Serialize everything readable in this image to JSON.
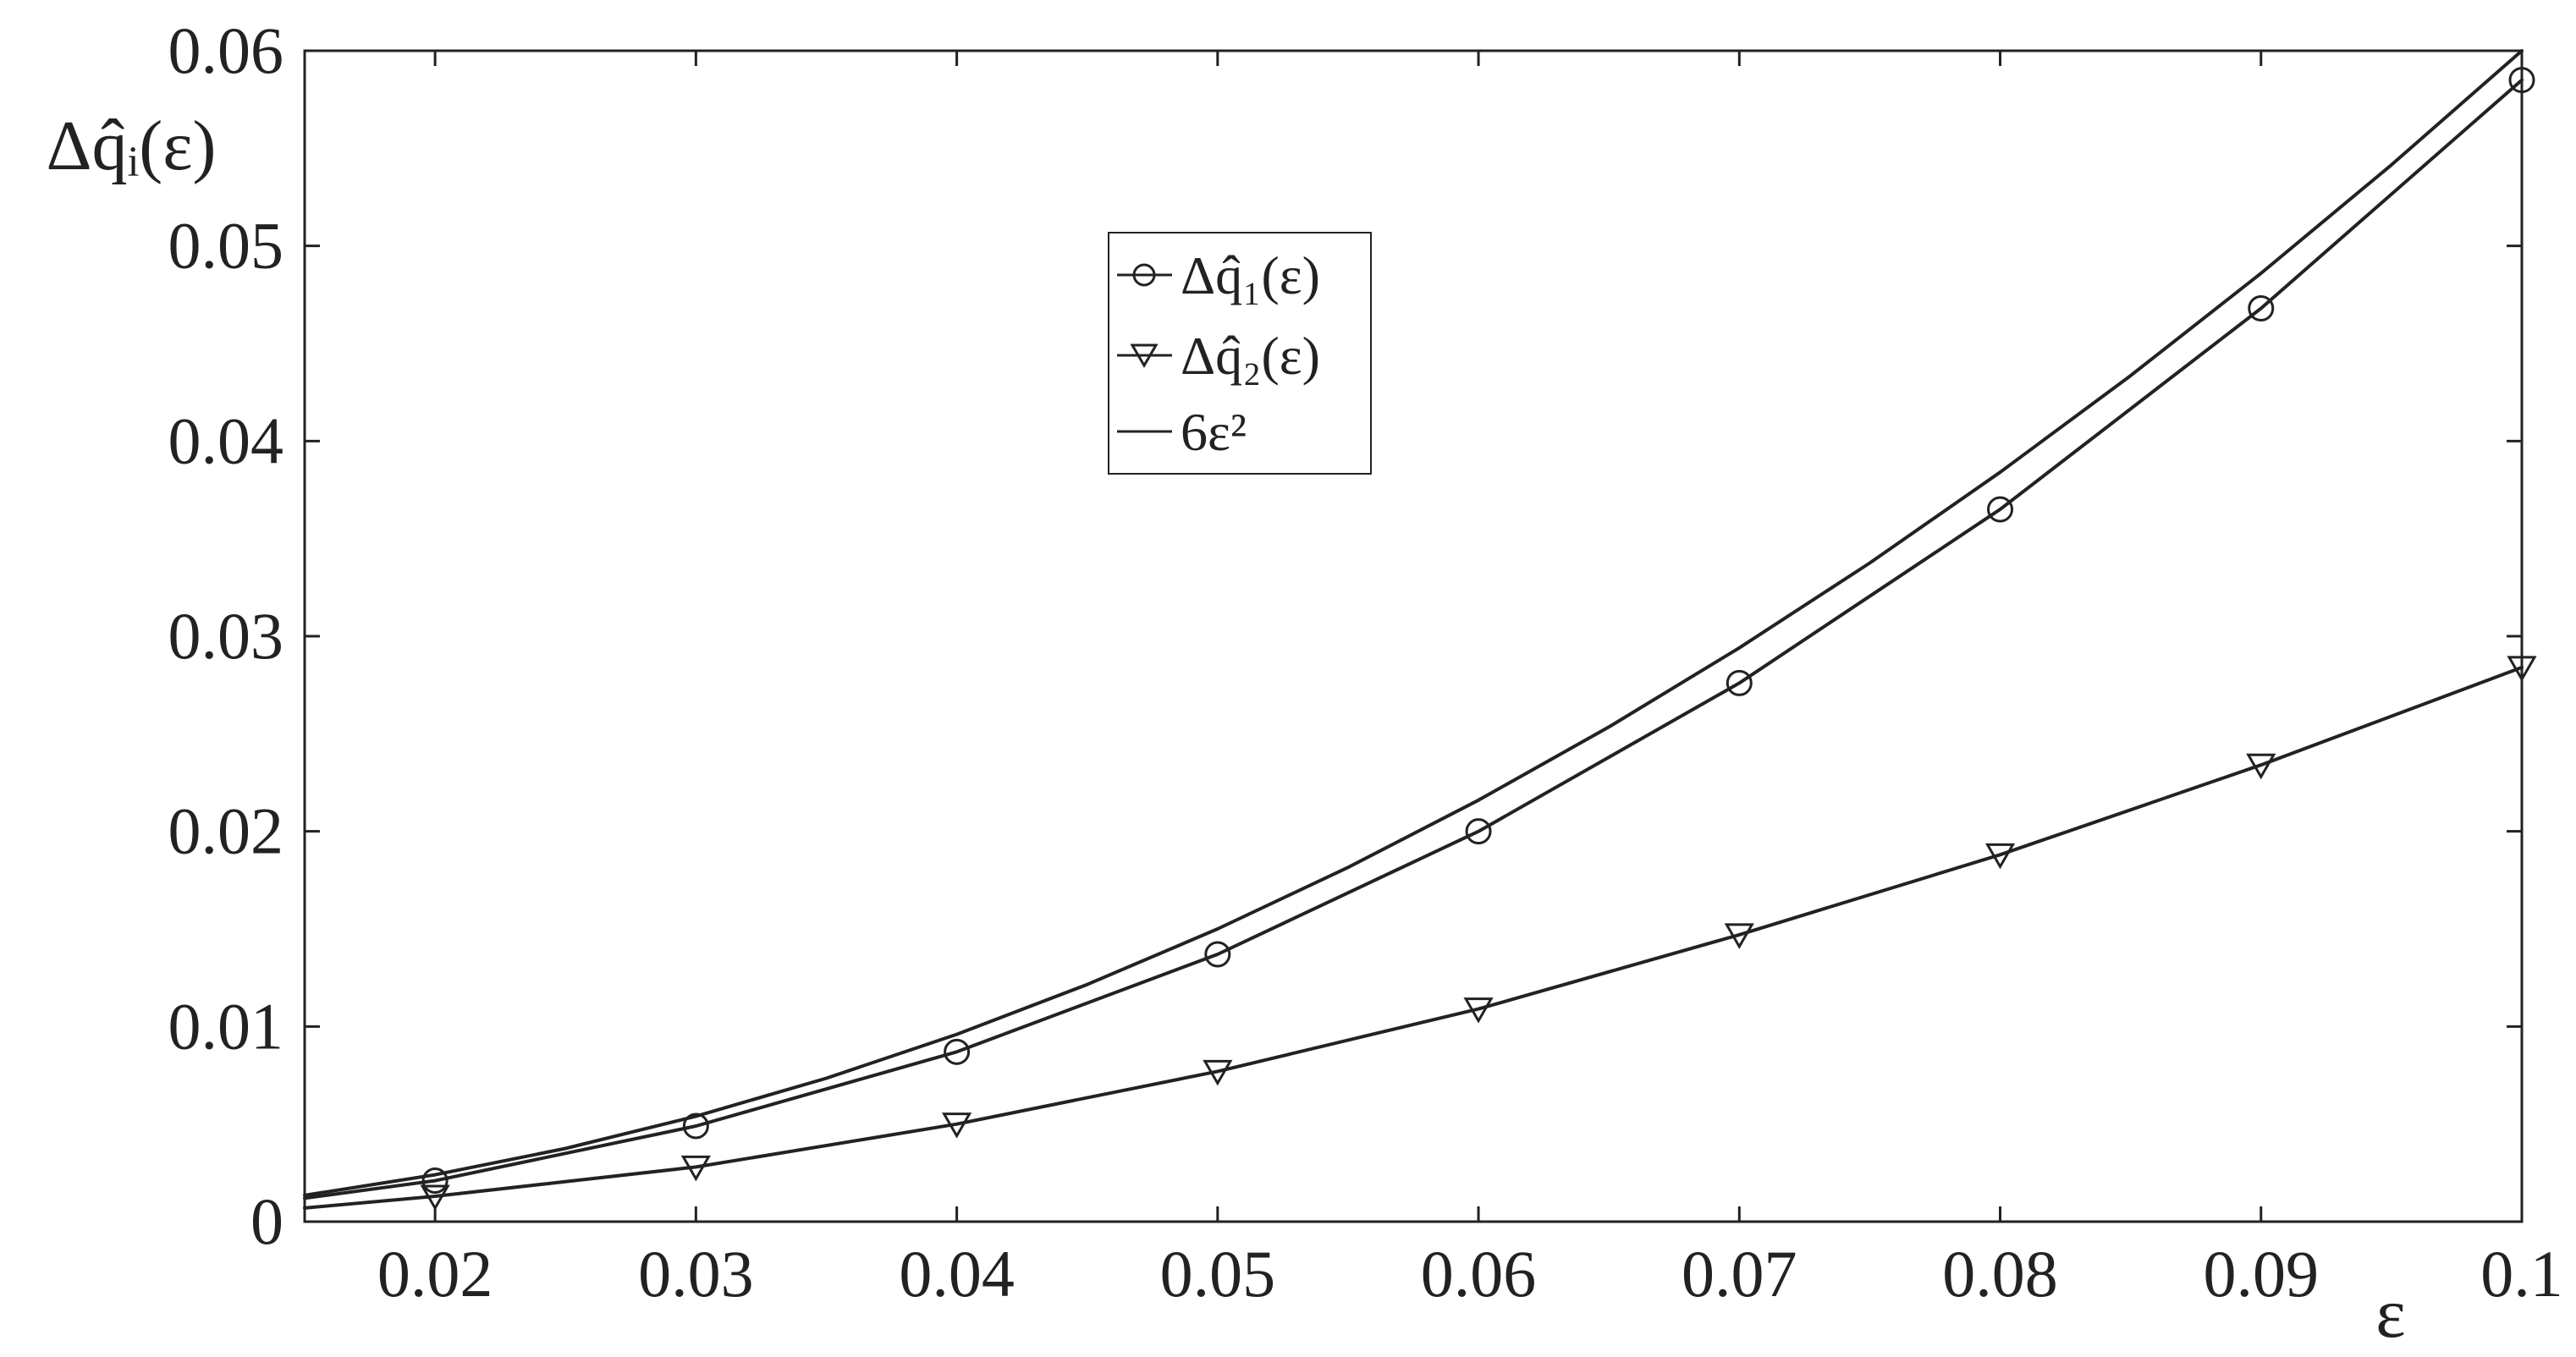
{
  "chart_data": {
    "type": "line",
    "title": "",
    "xlabel": "ε",
    "ylabel": "Δq̂ᵢ(ε)",
    "xlim": [
      0.015,
      0.1
    ],
    "ylim": [
      0,
      0.06
    ],
    "grid": false,
    "legend_position": "upper-center",
    "x_ticks": [
      0.02,
      0.03,
      0.04,
      0.05,
      0.06,
      0.07,
      0.08,
      0.09,
      0.1
    ],
    "x_tick_labels": [
      "0.02",
      "0.03",
      "0.04",
      "0.05",
      "0.06",
      "0.07",
      "0.08",
      "0.09",
      "0.1"
    ],
    "y_ticks": [
      0,
      0.01,
      0.02,
      0.03,
      0.04,
      0.05,
      0.06
    ],
    "y_tick_labels": [
      "0",
      "0.01",
      "0.02",
      "0.03",
      "0.04",
      "0.05",
      "0.06"
    ],
    "series": [
      {
        "name": "Δq̂₁(ε)",
        "marker": "circle",
        "color": "#222222",
        "x": [
          0.015,
          0.02,
          0.03,
          0.04,
          0.05,
          0.06,
          0.07,
          0.08,
          0.09,
          0.1
        ],
        "y": [
          0.0012,
          0.0021,
          0.0049,
          0.0087,
          0.0137,
          0.02,
          0.0276,
          0.0365,
          0.0468,
          0.0585
        ],
        "marker_x": [
          0.02,
          0.03,
          0.04,
          0.05,
          0.06,
          0.07,
          0.08,
          0.09,
          0.1
        ],
        "marker_y": [
          0.0021,
          0.0049,
          0.0087,
          0.0137,
          0.02,
          0.0276,
          0.0365,
          0.0468,
          0.0585
        ]
      },
      {
        "name": "Δq̂₂(ε)",
        "marker": "triangle-down",
        "color": "#222222",
        "x": [
          0.015,
          0.02,
          0.03,
          0.04,
          0.05,
          0.06,
          0.07,
          0.08,
          0.09,
          0.1
        ],
        "y": [
          0.0007,
          0.0013,
          0.0028,
          0.005,
          0.0077,
          0.0109,
          0.0147,
          0.0188,
          0.0234,
          0.0284
        ],
        "marker_x": [
          0.02,
          0.03,
          0.04,
          0.05,
          0.06,
          0.07,
          0.08,
          0.09,
          0.1
        ],
        "marker_y": [
          0.0013,
          0.0028,
          0.005,
          0.0077,
          0.0109,
          0.0147,
          0.0188,
          0.0234,
          0.0284
        ]
      },
      {
        "name": "6ε²",
        "marker": "none",
        "color": "#222222",
        "x": [
          0.015,
          0.02,
          0.025,
          0.03,
          0.035,
          0.04,
          0.045,
          0.05,
          0.055,
          0.06,
          0.065,
          0.07,
          0.075,
          0.08,
          0.085,
          0.09,
          0.095,
          0.1
        ],
        "y": [
          0.00135,
          0.0024,
          0.00375,
          0.0054,
          0.00735,
          0.0096,
          0.01215,
          0.015,
          0.01815,
          0.0216,
          0.02535,
          0.0294,
          0.03375,
          0.0384,
          0.04335,
          0.0486,
          0.05415,
          0.06
        ]
      }
    ]
  }
}
